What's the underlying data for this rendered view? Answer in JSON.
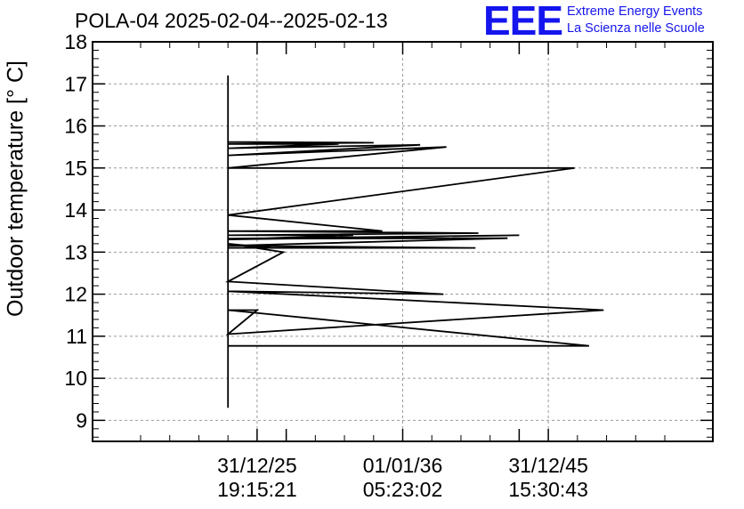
{
  "header": {
    "title": "POLA-04 2025-02-04--2025-02-13",
    "logo_mark": "EEE",
    "logo_line1": "Extreme Energy Events",
    "logo_line2": "La Scienza nelle Scuole"
  },
  "chart_data": {
    "type": "line",
    "title": "POLA-04 2025-02-04--2025-02-13",
    "ylabel": "Outdoor temperature [° C]",
    "xlabel": "",
    "ylim": [
      8.5,
      18
    ],
    "xlim": [
      -0.565,
      1.565
    ],
    "grid": true,
    "yticks": [
      9,
      10,
      11,
      12,
      13,
      14,
      15,
      16,
      17,
      18
    ],
    "xticks": [
      {
        "pos": 0,
        "date": "31/12/25",
        "time": "19:15:21"
      },
      {
        "pos": 0.5,
        "date": "01/01/36",
        "time": "05:23:02"
      },
      {
        "pos": 1,
        "date": "31/12/45",
        "time": "15:30:43"
      }
    ],
    "series": [
      {
        "name": "Outdoor temperature",
        "x": [
          -0.1,
          -0.1,
          -0.1,
          0.4,
          -0.1,
          0.28,
          -0.1,
          0.56,
          -0.1,
          0.65,
          -0.1,
          1.09,
          -0.1,
          0.43,
          -0.1,
          0.76,
          -0.1,
          0.33,
          -0.1,
          0.9,
          -0.1,
          0.86,
          -0.1,
          0.75,
          -0.1,
          0.05,
          -0.1,
          0.09,
          -0.1,
          0.64,
          -0.1,
          1.19,
          -0.1,
          0.0,
          -0.1,
          1.14,
          -0.1
        ],
        "y": [
          9.3,
          17.2,
          15.62,
          15.6,
          15.57,
          15.57,
          15.47,
          15.55,
          15.3,
          15.5,
          15.0,
          15.0,
          13.88,
          13.5,
          13.5,
          13.45,
          13.4,
          13.4,
          13.3,
          13.4,
          13.32,
          13.33,
          13.15,
          13.1,
          13.1,
          13.1,
          13.2,
          13.0,
          12.3,
          12.0,
          12.07,
          11.62,
          11.05,
          11.62,
          11.62,
          10.77,
          10.77
        ]
      }
    ]
  }
}
